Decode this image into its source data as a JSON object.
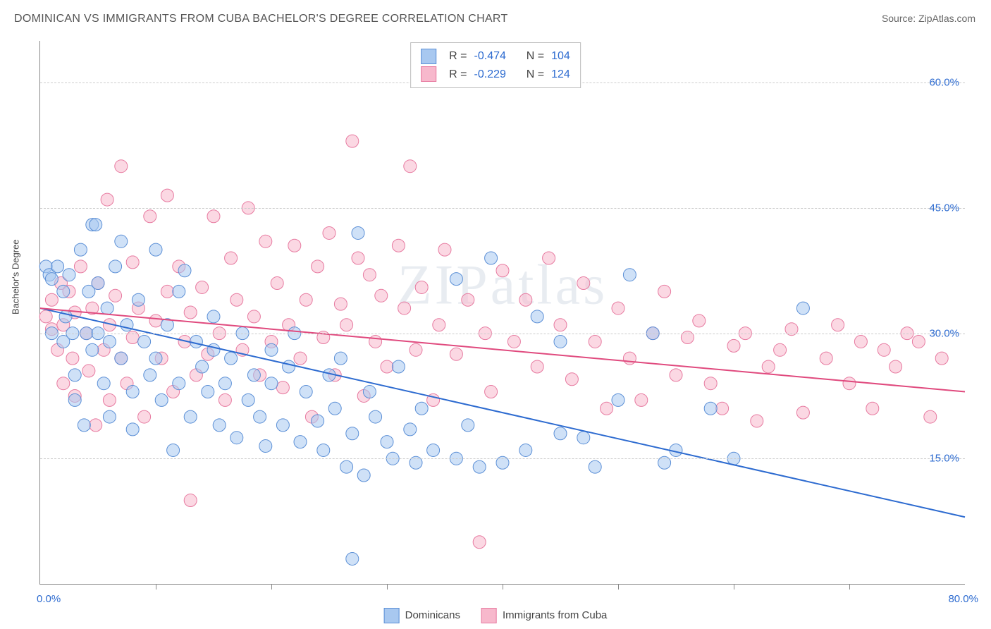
{
  "title": "DOMINICAN VS IMMIGRANTS FROM CUBA BACHELOR'S DEGREE CORRELATION CHART",
  "source": "Source: ZipAtlas.com",
  "watermark": "ZIPatlas",
  "chart": {
    "type": "scatter",
    "ylabel": "Bachelor's Degree",
    "xlim": [
      0,
      80
    ],
    "ylim": [
      0,
      65
    ],
    "yticks": [
      15,
      30,
      45,
      60
    ],
    "ytick_labels": [
      "15.0%",
      "30.0%",
      "45.0%",
      "60.0%"
    ],
    "xticks": [
      10,
      20,
      30,
      40,
      50,
      60,
      70
    ],
    "x_origin_label": "0.0%",
    "x_max_label": "80.0%",
    "background_color": "#ffffff",
    "grid_color": "#cccccc",
    "axis_color": "#888888",
    "tick_label_color": "#2d6bd0",
    "marker_radius": 9,
    "marker_opacity": 0.55,
    "line_width": 2,
    "series": [
      {
        "name": "Dominicans",
        "color_fill": "#a8c8f0",
        "color_stroke": "#5b8fd6",
        "trend_color": "#2d6bd0",
        "trend": {
          "x1": 0,
          "y1": 33,
          "x2": 80,
          "y2": 8
        },
        "stats": {
          "R": "-0.474",
          "N": "104"
        },
        "points": [
          [
            0.5,
            38
          ],
          [
            0.8,
            37
          ],
          [
            1,
            36.5
          ],
          [
            1,
            30
          ],
          [
            1.5,
            38
          ],
          [
            2,
            35
          ],
          [
            2,
            29
          ],
          [
            2.2,
            32
          ],
          [
            2.5,
            37
          ],
          [
            2.8,
            30
          ],
          [
            3,
            25
          ],
          [
            3,
            22
          ],
          [
            3.5,
            40
          ],
          [
            3.8,
            19
          ],
          [
            4,
            30
          ],
          [
            4.2,
            35
          ],
          [
            4.5,
            28
          ],
          [
            4.5,
            43
          ],
          [
            5,
            30
          ],
          [
            5,
            36
          ],
          [
            5.5,
            24
          ],
          [
            5.8,
            33
          ],
          [
            6,
            29
          ],
          [
            6,
            20
          ],
          [
            6.5,
            38
          ],
          [
            7,
            41
          ],
          [
            7,
            27
          ],
          [
            7.5,
            31
          ],
          [
            8,
            18.5
          ],
          [
            8,
            23
          ],
          [
            8.5,
            34
          ],
          [
            9,
            29
          ],
          [
            9.5,
            25
          ],
          [
            10,
            40
          ],
          [
            10,
            27
          ],
          [
            10.5,
            22
          ],
          [
            11,
            31
          ],
          [
            11.5,
            16
          ],
          [
            12,
            24
          ],
          [
            12,
            35
          ],
          [
            12.5,
            37.5
          ],
          [
            13,
            20
          ],
          [
            13.5,
            29
          ],
          [
            14,
            26
          ],
          [
            14.5,
            23
          ],
          [
            15,
            28
          ],
          [
            15,
            32
          ],
          [
            15.5,
            19
          ],
          [
            16,
            24
          ],
          [
            16.5,
            27
          ],
          [
            17,
            17.5
          ],
          [
            17.5,
            30
          ],
          [
            18,
            22
          ],
          [
            18.5,
            25
          ],
          [
            19,
            20
          ],
          [
            19.5,
            16.5
          ],
          [
            20,
            28
          ],
          [
            20,
            24
          ],
          [
            21,
            19
          ],
          [
            21.5,
            26
          ],
          [
            22,
            30
          ],
          [
            22.5,
            17
          ],
          [
            23,
            23
          ],
          [
            24,
            19.5
          ],
          [
            24.5,
            16
          ],
          [
            25,
            25
          ],
          [
            25.5,
            21
          ],
          [
            26,
            27
          ],
          [
            26.5,
            14
          ],
          [
            27,
            18
          ],
          [
            27.5,
            42
          ],
          [
            28,
            13
          ],
          [
            28.5,
            23
          ],
          [
            29,
            20
          ],
          [
            30,
            17
          ],
          [
            30.5,
            15
          ],
          [
            31,
            26
          ],
          [
            32,
            18.5
          ],
          [
            32.5,
            14.5
          ],
          [
            33,
            21
          ],
          [
            34,
            16
          ],
          [
            36,
            15
          ],
          [
            36,
            36.5
          ],
          [
            37,
            19
          ],
          [
            38,
            14
          ],
          [
            39,
            39
          ],
          [
            40,
            14.5
          ],
          [
            42,
            16
          ],
          [
            43,
            32
          ],
          [
            45,
            18
          ],
          [
            45,
            29
          ],
          [
            47,
            17.5
          ],
          [
            48,
            14
          ],
          [
            50,
            22
          ],
          [
            51,
            37
          ],
          [
            53,
            30
          ],
          [
            54,
            14.5
          ],
          [
            55,
            16
          ],
          [
            58,
            21
          ],
          [
            60,
            15
          ],
          [
            66,
            33
          ],
          [
            27,
            3
          ],
          [
            4.8,
            43
          ]
        ]
      },
      {
        "name": "Immigrants from Cuba",
        "color_fill": "#f7b8cc",
        "color_stroke": "#e77aa0",
        "trend_color": "#e04a7e",
        "trend": {
          "x1": 0,
          "y1": 33,
          "x2": 80,
          "y2": 23
        },
        "stats": {
          "R": "-0.229",
          "N": "124"
        },
        "points": [
          [
            0.5,
            32
          ],
          [
            1,
            30.5
          ],
          [
            1,
            34
          ],
          [
            1.5,
            28
          ],
          [
            1.8,
            36
          ],
          [
            2,
            24
          ],
          [
            2,
            31
          ],
          [
            2.5,
            35
          ],
          [
            2.8,
            27
          ],
          [
            3,
            32.5
          ],
          [
            3,
            22.5
          ],
          [
            3.5,
            38
          ],
          [
            4,
            30
          ],
          [
            4.2,
            25.5
          ],
          [
            4.5,
            33
          ],
          [
            4.8,
            19
          ],
          [
            5,
            36
          ],
          [
            5.5,
            28
          ],
          [
            5.8,
            46
          ],
          [
            6,
            22
          ],
          [
            6,
            31
          ],
          [
            6.5,
            34.5
          ],
          [
            7,
            27
          ],
          [
            7,
            50
          ],
          [
            7.5,
            24
          ],
          [
            8,
            38.5
          ],
          [
            8,
            29.5
          ],
          [
            8.5,
            33
          ],
          [
            9,
            20
          ],
          [
            9.5,
            44
          ],
          [
            10,
            31.5
          ],
          [
            10.5,
            27
          ],
          [
            11,
            35
          ],
          [
            11,
            46.5
          ],
          [
            11.5,
            23
          ],
          [
            12,
            38
          ],
          [
            12.5,
            29
          ],
          [
            13,
            32.5
          ],
          [
            13,
            10
          ],
          [
            13.5,
            25
          ],
          [
            14,
            35.5
          ],
          [
            14.5,
            27.5
          ],
          [
            15,
            44
          ],
          [
            15.5,
            30
          ],
          [
            16,
            22
          ],
          [
            16.5,
            39
          ],
          [
            17,
            34
          ],
          [
            17.5,
            28
          ],
          [
            18,
            45
          ],
          [
            18.5,
            32
          ],
          [
            19,
            25
          ],
          [
            19.5,
            41
          ],
          [
            20,
            29
          ],
          [
            20.5,
            36
          ],
          [
            21,
            23.5
          ],
          [
            21.5,
            31
          ],
          [
            22,
            40.5
          ],
          [
            22.5,
            27
          ],
          [
            23,
            34
          ],
          [
            23.5,
            20
          ],
          [
            24,
            38
          ],
          [
            24.5,
            29.5
          ],
          [
            25,
            42
          ],
          [
            25.5,
            25
          ],
          [
            26,
            33.5
          ],
          [
            26.5,
            31
          ],
          [
            27,
            53
          ],
          [
            27.5,
            39
          ],
          [
            28,
            22.5
          ],
          [
            28.5,
            37
          ],
          [
            29,
            29
          ],
          [
            29.5,
            34.5
          ],
          [
            30,
            26
          ],
          [
            31,
            40.5
          ],
          [
            31.5,
            33
          ],
          [
            32,
            50
          ],
          [
            32.5,
            28
          ],
          [
            33,
            35.5
          ],
          [
            34,
            22
          ],
          [
            34.5,
            31
          ],
          [
            35,
            40
          ],
          [
            36,
            27.5
          ],
          [
            37,
            34
          ],
          [
            38,
            5
          ],
          [
            38.5,
            30
          ],
          [
            39,
            23
          ],
          [
            40,
            37.5
          ],
          [
            41,
            29
          ],
          [
            42,
            34
          ],
          [
            43,
            26
          ],
          [
            44,
            39
          ],
          [
            45,
            31
          ],
          [
            46,
            24.5
          ],
          [
            47,
            36
          ],
          [
            48,
            29
          ],
          [
            49,
            21
          ],
          [
            50,
            33
          ],
          [
            51,
            27
          ],
          [
            52,
            22
          ],
          [
            53,
            30
          ],
          [
            54,
            35
          ],
          [
            55,
            25
          ],
          [
            56,
            29.5
          ],
          [
            57,
            31.5
          ],
          [
            58,
            24
          ],
          [
            59,
            21
          ],
          [
            60,
            28.5
          ],
          [
            61,
            30
          ],
          [
            62,
            19.5
          ],
          [
            63,
            26
          ],
          [
            64,
            28
          ],
          [
            65,
            30.5
          ],
          [
            66,
            20.5
          ],
          [
            68,
            27
          ],
          [
            69,
            31
          ],
          [
            70,
            24
          ],
          [
            71,
            29
          ],
          [
            72,
            21
          ],
          [
            73,
            28
          ],
          [
            74,
            26
          ],
          [
            75,
            30
          ],
          [
            76,
            29
          ],
          [
            77,
            20
          ],
          [
            78,
            27
          ]
        ]
      }
    ]
  },
  "legend": {
    "series1": "Dominicans",
    "series2": "Immigrants from Cuba"
  },
  "stats_box": {
    "r_label": "R =",
    "n_label": "N ="
  }
}
